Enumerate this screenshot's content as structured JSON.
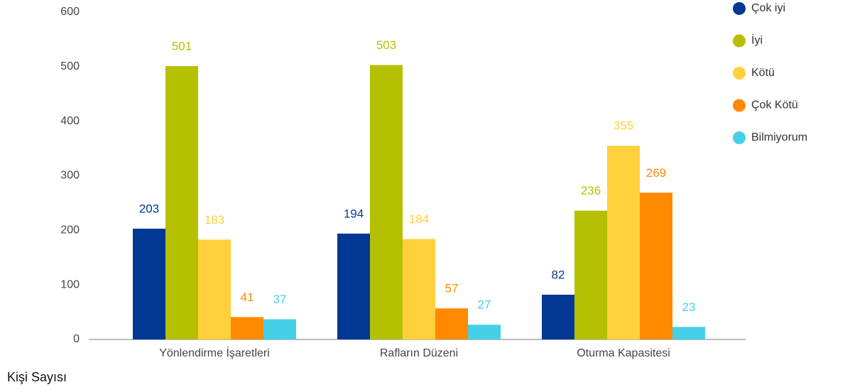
{
  "chart_data": {
    "type": "bar",
    "ylabel": "Kişi Sayısı",
    "categories": [
      "Yönlendirme İşaretleri",
      "Rafların Düzeni",
      "Oturma Kapasitesi"
    ],
    "series": [
      {
        "name": "Çok iyi",
        "color": "#003893",
        "values": [
          203,
          194,
          82
        ]
      },
      {
        "name": "İyi",
        "color": "#b5c000",
        "values": [
          501,
          503,
          236
        ]
      },
      {
        "name": "Kötü",
        "color": "#ffd03b",
        "values": [
          183,
          184,
          355
        ]
      },
      {
        "name": "Çok Kötü",
        "color": "#ff8a00",
        "values": [
          41,
          57,
          269
        ]
      },
      {
        "name": "Bilmiyorum",
        "color": "#45d0e8",
        "values": [
          37,
          27,
          23
        ]
      }
    ],
    "ylim": [
      0,
      600
    ],
    "yticks": [
      0,
      100,
      200,
      300,
      400,
      500,
      600
    ],
    "grid": false,
    "legend": "right"
  }
}
